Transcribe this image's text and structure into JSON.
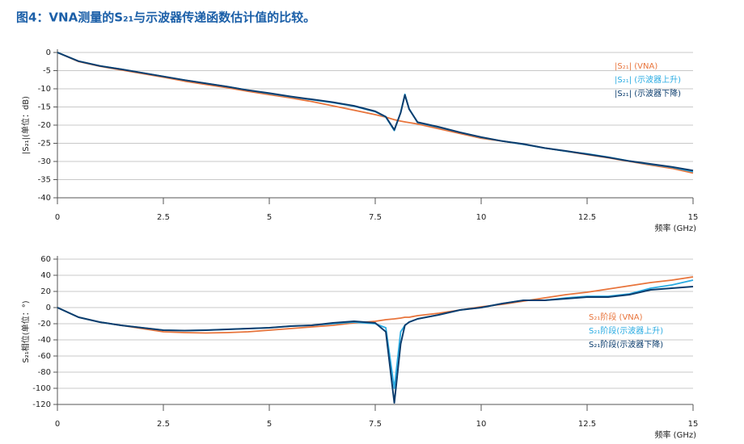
{
  "title": "图4：VNA测量的S₂₁与示波器传递函数估计值的比较。",
  "chart_data": [
    {
      "type": "line",
      "ylabel": "|S₂₁|(单位：dB)",
      "xlabel": "频率 (GHz)",
      "x": [
        0,
        0.5,
        1,
        1.5,
        2,
        2.5,
        3,
        3.5,
        4,
        4.5,
        5,
        5.5,
        6,
        6.5,
        7,
        7.5,
        7.75,
        7.95,
        8.1,
        8.2,
        8.3,
        8.5,
        9,
        9.5,
        10,
        10.5,
        11,
        11.5,
        12,
        12.5,
        13,
        13.5,
        14,
        14.5,
        15
      ],
      "xlim": [
        0,
        15
      ],
      "xticks": [
        0,
        2.5,
        5,
        7.5,
        10,
        12.5,
        15
      ],
      "ylim": [
        -40,
        0
      ],
      "yticks": [
        0,
        -5,
        -10,
        -15,
        -20,
        -25,
        -30,
        -35,
        -40
      ],
      "grid": true,
      "legend": "upper right",
      "series": [
        {
          "name": "|S₂₁| (VNA)",
          "color": "#e8743b",
          "values": [
            0,
            -2.5,
            -3.8,
            -4.8,
            -5.8,
            -6.8,
            -7.9,
            -8.8,
            -9.7,
            -10.7,
            -11.6,
            -12.5,
            -13.5,
            -14.7,
            -15.9,
            -17.1,
            -17.8,
            -18.5,
            -18.9,
            -19.1,
            -19.3,
            -19.7,
            -21,
            -22.3,
            -23.6,
            -24.4,
            -25.3,
            -26.3,
            -27.2,
            -28.1,
            -29,
            -30,
            -31,
            -31.9,
            -33.2
          ]
        },
        {
          "name": "|S₂₁| (示波器上升)",
          "color": "#29abe2",
          "values": [
            0,
            -2.4,
            -3.7,
            -4.6,
            -5.6,
            -6.6,
            -7.6,
            -8.5,
            -9.4,
            -10.4,
            -11.3,
            -12.2,
            -13,
            -13.8,
            -14.8,
            -16.3,
            -17.8,
            -21.5,
            -16.5,
            -11.5,
            -15.5,
            -19.3,
            -20.6,
            -22,
            -23.4,
            -24.4,
            -25.3,
            -26.3,
            -27.2,
            -27.9,
            -28.8,
            -29.9,
            -30.8,
            -31.6,
            -32.8
          ]
        },
        {
          "name": "|S₂₁| (示波器下降)",
          "color": "#0b3d6e",
          "values": [
            0,
            -2.4,
            -3.7,
            -4.6,
            -5.6,
            -6.6,
            -7.6,
            -8.5,
            -9.4,
            -10.4,
            -11.2,
            -12.1,
            -12.9,
            -13.7,
            -14.7,
            -16.2,
            -17.7,
            -21.3,
            -16.6,
            -11.7,
            -15.6,
            -19.2,
            -20.5,
            -22,
            -23.3,
            -24.4,
            -25.2,
            -26.3,
            -27.1,
            -28,
            -28.9,
            -29.9,
            -30.7,
            -31.5,
            -32.5
          ]
        }
      ]
    },
    {
      "type": "line",
      "ylabel": "S₂₁相位(单位：°)",
      "xlabel": "频率 (GHz)",
      "x": [
        0,
        0.5,
        1,
        1.5,
        2,
        2.5,
        3,
        3.5,
        4,
        4.5,
        5,
        5.5,
        6,
        6.5,
        7,
        7.5,
        7.75,
        7.95,
        8.1,
        8.2,
        8.3,
        8.5,
        9,
        9.5,
        10,
        10.5,
        11,
        11.5,
        12,
        12.5,
        13,
        13.5,
        14,
        14.5,
        15
      ],
      "xlim": [
        0,
        15
      ],
      "xticks": [
        0,
        2.5,
        5,
        7.5,
        10,
        12.5,
        15
      ],
      "ylim": [
        -120,
        60
      ],
      "yticks": [
        60,
        40,
        20,
        0,
        -20,
        -40,
        -60,
        -80,
        -100,
        -120
      ],
      "grid": true,
      "legend": "center right",
      "series": [
        {
          "name": "S₂₁阶段 (VNA)",
          "color": "#e8743b",
          "values": [
            0,
            -12,
            -18,
            -22,
            -26,
            -30,
            -31,
            -31.5,
            -31,
            -30,
            -28,
            -26,
            -24,
            -22,
            -19,
            -17,
            -15,
            -14,
            -13,
            -12,
            -12,
            -10,
            -7,
            -3,
            1,
            4,
            8,
            12,
            16,
            19,
            23,
            27,
            31,
            34,
            38
          ]
        },
        {
          "name": "S₂₁阶段(示波器上升)",
          "color": "#29abe2",
          "values": [
            0,
            -12,
            -18,
            -22,
            -25,
            -28,
            -28.5,
            -28,
            -27,
            -26,
            -25,
            -23,
            -22,
            -20,
            -18,
            -20,
            -25,
            -100,
            -30,
            -22,
            -18,
            -14,
            -9,
            -3,
            0,
            5,
            9,
            9,
            12,
            14,
            14,
            17,
            24,
            28,
            34
          ]
        },
        {
          "name": "S₂₁阶段(示波器下降)",
          "color": "#0b3d6e",
          "values": [
            0,
            -12,
            -18,
            -22,
            -25,
            -28,
            -28.5,
            -28,
            -27,
            -26,
            -25,
            -23,
            -22,
            -19,
            -17,
            -19,
            -30,
            -118,
            -45,
            -22,
            -18,
            -14,
            -9,
            -3,
            0,
            5,
            9,
            9,
            11,
            13,
            13,
            16,
            22,
            24,
            26
          ]
        }
      ]
    }
  ]
}
